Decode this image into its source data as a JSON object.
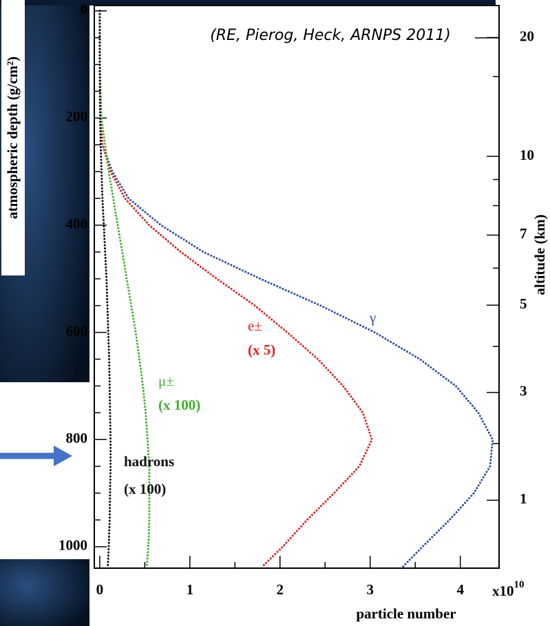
{
  "chart_data": {
    "type": "line",
    "orientation": "vertical-profile",
    "citation": "(RE, Pierog, Heck, ARNPS 2011)",
    "ylabel": "atmospheric depth (g/cm²)",
    "y2label": "altitude (km)",
    "xlabel": "particle number",
    "x_multiplier": {
      "base": "x10",
      "exponent": "10"
    },
    "xlim": [
      -0.06,
      4.43
    ],
    "xticks": [
      0,
      1,
      2,
      3,
      4
    ],
    "xminorticks": [
      0.5,
      1.5,
      2.5,
      3.5
    ],
    "ylim": [
      -10,
      1040
    ],
    "y_inverted": true,
    "yticks": [
      0,
      200,
      400,
      600,
      800,
      1000
    ],
    "yminorticks": [
      50,
      100,
      150,
      250,
      300,
      350,
      450,
      500,
      550,
      650,
      700,
      750,
      850,
      900,
      950
    ],
    "y2_scale": "atmosphere",
    "y2ticks": [
      20,
      10,
      7,
      5,
      3,
      1
    ],
    "y2minorticks": [
      15,
      9,
      8,
      6,
      4,
      2
    ],
    "depth": [
      0,
      100,
      200,
      250,
      300,
      350,
      400,
      450,
      500,
      550,
      600,
      650,
      700,
      750,
      800,
      850,
      900,
      950,
      1000,
      1038
    ],
    "series": [
      {
        "name": "γ",
        "color": "#2e4aa6",
        "values": [
          0,
          0,
          0.01,
          0.03,
          0.14,
          0.32,
          0.68,
          1.15,
          1.78,
          2.45,
          3.05,
          3.55,
          3.95,
          4.2,
          4.36,
          4.33,
          4.15,
          3.88,
          3.58,
          3.36
        ]
      },
      {
        "name": "e±",
        "scale": "(x 5)",
        "color": "#e02020",
        "values": [
          0,
          0,
          0.01,
          0.03,
          0.12,
          0.28,
          0.55,
          0.9,
          1.3,
          1.72,
          2.08,
          2.42,
          2.7,
          2.92,
          3.02,
          2.88,
          2.6,
          2.3,
          2.03,
          1.8
        ]
      },
      {
        "name": "μ±",
        "scale": "(x 100)",
        "color": "#3cb02c",
        "values": [
          0,
          0,
          0.02,
          0.06,
          0.1,
          0.15,
          0.2,
          0.25,
          0.3,
          0.35,
          0.4,
          0.44,
          0.48,
          0.51,
          0.53,
          0.55,
          0.55,
          0.55,
          0.54,
          0.52
        ]
      },
      {
        "name": "hadrons",
        "scale": "(x 100)",
        "color": "#111111",
        "values": [
          0,
          0,
          0.005,
          0.01,
          0.02,
          0.03,
          0.045,
          0.06,
          0.075,
          0.085,
          0.095,
          0.105,
          0.11,
          0.115,
          0.12,
          0.12,
          0.115,
          0.11,
          0.1,
          0.09
        ]
      }
    ]
  }
}
